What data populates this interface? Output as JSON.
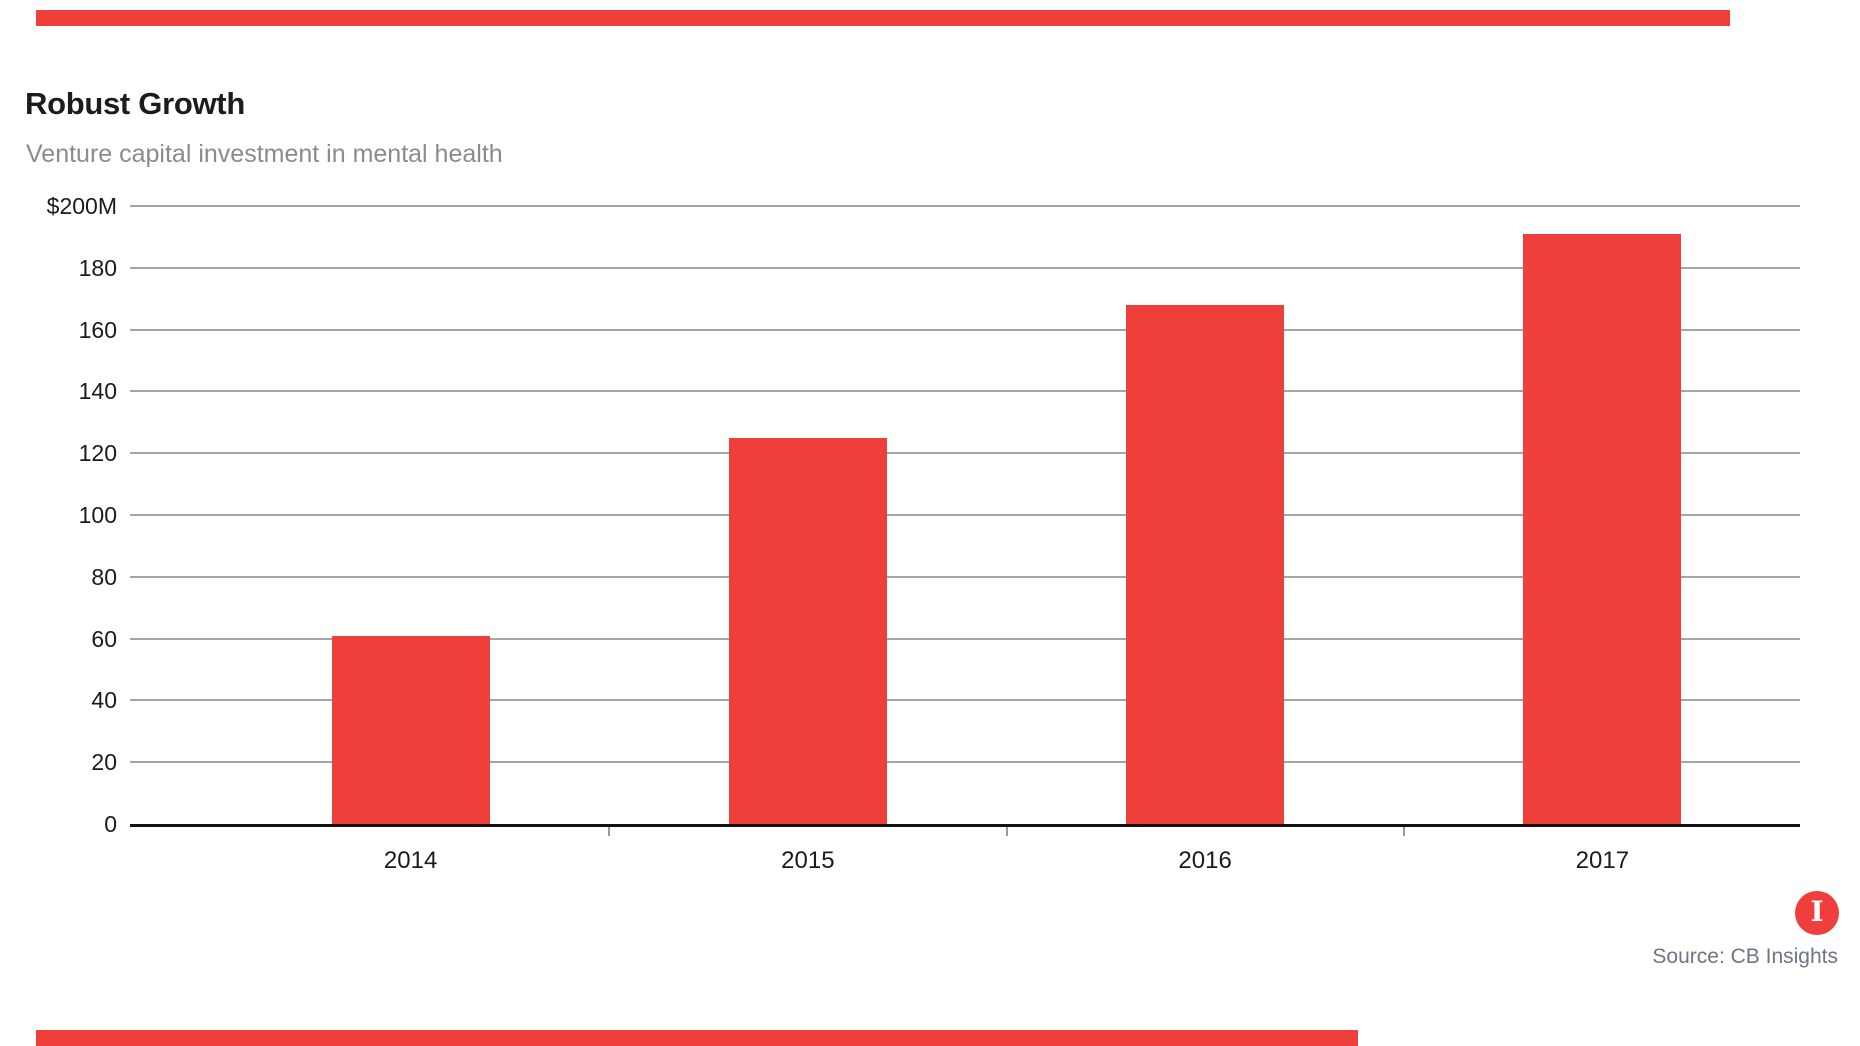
{
  "header": {
    "title": "Robust Growth",
    "subtitle": "Venture capital investment in mental health"
  },
  "chart_data": {
    "type": "bar",
    "title": "Robust Growth",
    "subtitle": "Venture capital investment in mental health",
    "categories": [
      "2014",
      "2015",
      "2016",
      "2017"
    ],
    "values": [
      61,
      125,
      168,
      191
    ],
    "xlabel": "",
    "ylabel": "",
    "ylim": [
      0,
      200
    ],
    "y_tick_step": 20,
    "y_tick_labels_top_to_bottom": [
      "$200M",
      "180",
      "160",
      "140",
      "120",
      "100",
      "80",
      "60",
      "40",
      "20",
      "0"
    ],
    "grid": true,
    "legend": false,
    "bar_color": "#ee3f3a",
    "gridline_color": "#a5a5a5",
    "baseline_color": "#121212",
    "units": "millions of US dollars"
  },
  "footer": {
    "source": "Source: CB Insights",
    "logo": {
      "icon": "cb-insights-logo",
      "letter": "I",
      "color": "#ee3f3c"
    }
  },
  "decor": {
    "top_strip_color": "#ee3f3a",
    "bottom_strip_color": "#ee3f3a"
  }
}
